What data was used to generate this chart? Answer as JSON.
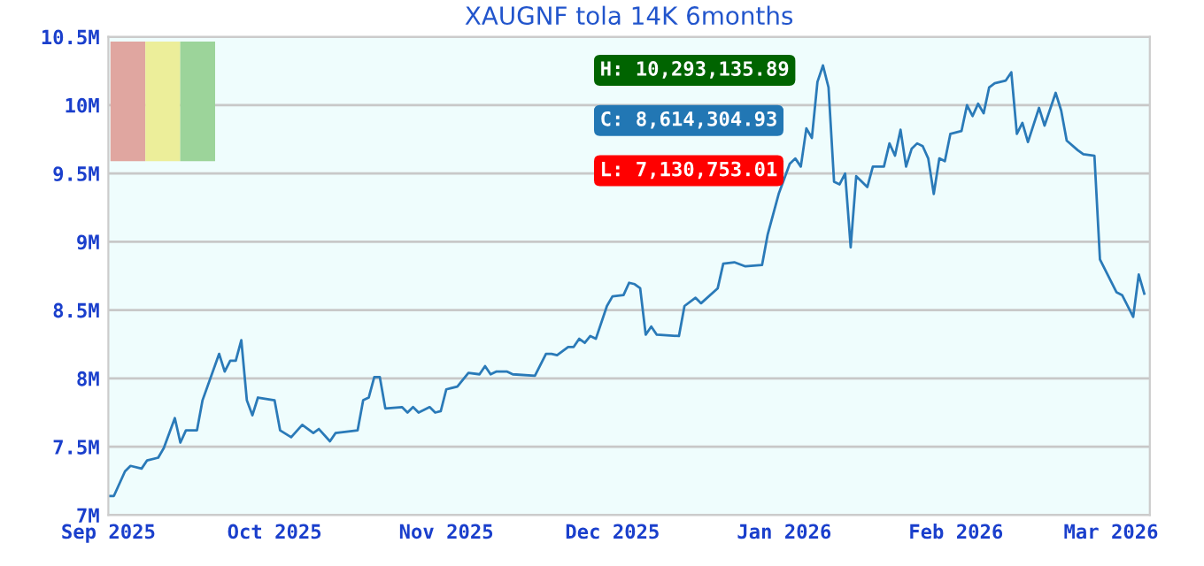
{
  "chart_data": {
    "type": "line",
    "title": "XAUGNF tola 14K 6months",
    "x": [
      "2025-09-01",
      "2025-09-02",
      "2025-09-04",
      "2025-09-05",
      "2025-09-07",
      "2025-09-08",
      "2025-09-10",
      "2025-09-11",
      "2025-09-13",
      "2025-09-14",
      "2025-09-15",
      "2025-09-17",
      "2025-09-18",
      "2025-09-21",
      "2025-09-22",
      "2025-09-23",
      "2025-09-24",
      "2025-09-25",
      "2025-09-26",
      "2025-09-27",
      "2025-09-28",
      "2025-10-01",
      "2025-10-02",
      "2025-10-04",
      "2025-10-06",
      "2025-10-08",
      "2025-10-09",
      "2025-10-11",
      "2025-10-12",
      "2025-10-16",
      "2025-10-17",
      "2025-10-18",
      "2025-10-19",
      "2025-10-20",
      "2025-10-21",
      "2025-10-24",
      "2025-10-25",
      "2025-10-26",
      "2025-10-27",
      "2025-10-29",
      "2025-10-30",
      "2025-10-31",
      "2025-11-01",
      "2025-11-03",
      "2025-11-05",
      "2025-11-07",
      "2025-11-08",
      "2025-11-09",
      "2025-11-10",
      "2025-11-12",
      "2025-11-13",
      "2025-11-17",
      "2025-11-19",
      "2025-11-20",
      "2025-11-21",
      "2025-11-23",
      "2025-11-24",
      "2025-11-25",
      "2025-11-26",
      "2025-11-27",
      "2025-11-28",
      "2025-11-30",
      "2025-12-01",
      "2025-12-03",
      "2025-12-04",
      "2025-12-05",
      "2025-12-06",
      "2025-12-07",
      "2025-12-08",
      "2025-12-09",
      "2025-12-13",
      "2025-12-14",
      "2025-12-16",
      "2025-12-17",
      "2025-12-20",
      "2025-12-21",
      "2025-12-23",
      "2025-12-25",
      "2025-12-28",
      "2025-12-29",
      "2025-12-31",
      "2026-01-02",
      "2026-01-03",
      "2026-01-04",
      "2026-01-05",
      "2026-01-06",
      "2026-01-07",
      "2026-01-08",
      "2026-01-09",
      "2026-01-10",
      "2026-01-11",
      "2026-01-12",
      "2026-01-13",
      "2026-01-14",
      "2026-01-16",
      "2026-01-17",
      "2026-01-19",
      "2026-01-20",
      "2026-01-21",
      "2026-01-22",
      "2026-01-23",
      "2026-01-24",
      "2026-01-25",
      "2026-01-26",
      "2026-01-27",
      "2026-01-28",
      "2026-01-29",
      "2026-01-30",
      "2026-01-31",
      "2026-02-02",
      "2026-02-03",
      "2026-02-04",
      "2026-02-05",
      "2026-02-06",
      "2026-02-07",
      "2026-02-08",
      "2026-02-10",
      "2026-02-11",
      "2026-02-12",
      "2026-02-13",
      "2026-02-14",
      "2026-02-16",
      "2026-02-17",
      "2026-02-19",
      "2026-02-20",
      "2026-02-21",
      "2026-02-23",
      "2026-02-24",
      "2026-02-26",
      "2026-02-27",
      "2026-03-02",
      "2026-03-03",
      "2026-03-05",
      "2026-03-06",
      "2026-03-07"
    ],
    "series": [
      {
        "color": "#2a7ab8",
        "values": [
          7.14,
          7.14,
          7.32,
          7.36,
          7.34,
          7.4,
          7.42,
          7.49,
          7.71,
          7.53,
          7.62,
          7.62,
          7.84,
          8.18,
          8.05,
          8.13,
          8.13,
          8.28,
          7.84,
          7.73,
          7.86,
          7.84,
          7.62,
          7.57,
          7.66,
          7.6,
          7.63,
          7.54,
          7.6,
          7.62,
          7.84,
          7.86,
          8.01,
          8.01,
          7.78,
          7.79,
          7.75,
          7.79,
          7.75,
          7.79,
          7.75,
          7.76,
          7.92,
          7.94,
          8.04,
          8.03,
          8.09,
          8.03,
          8.05,
          8.05,
          8.03,
          8.02,
          8.18,
          8.18,
          8.17,
          8.23,
          8.23,
          8.29,
          8.26,
          8.31,
          8.29,
          8.53,
          8.6,
          8.61,
          8.7,
          8.69,
          8.66,
          8.32,
          8.38,
          8.32,
          8.31,
          8.53,
          8.59,
          8.55,
          8.66,
          8.84,
          8.85,
          8.82,
          8.83,
          9.05,
          9.35,
          9.57,
          9.61,
          9.55,
          9.83,
          9.76,
          10.17,
          10.29,
          10.13,
          9.44,
          9.42,
          9.5,
          8.96,
          9.48,
          9.4,
          9.55,
          9.55,
          9.72,
          9.63,
          9.82,
          9.55,
          9.68,
          9.72,
          9.7,
          9.61,
          9.35,
          9.61,
          9.59,
          9.79,
          9.81,
          10.0,
          9.92,
          10.01,
          9.94,
          10.13,
          10.16,
          10.18,
          10.24,
          9.79,
          9.87,
          9.73,
          9.98,
          9.85,
          10.09,
          9.96,
          9.74,
          9.67,
          9.64,
          9.63,
          8.87,
          8.63,
          8.61,
          8.45,
          8.76,
          8.62
        ]
      }
    ],
    "xlim": [
      "2025-09-01",
      "2026-03-08"
    ],
    "xticks": [
      {
        "value": "2025-09-01",
        "label": "Sep 2025"
      },
      {
        "value": "2025-10-01",
        "label": "Oct 2025"
      },
      {
        "value": "2025-11-01",
        "label": "Nov 2025"
      },
      {
        "value": "2025-12-01",
        "label": "Dec 2025"
      },
      {
        "value": "2026-01-01",
        "label": "Jan 2026"
      },
      {
        "value": "2026-02-01",
        "label": "Feb 2026"
      },
      {
        "value": "2026-03-01",
        "label": "Mar 2026"
      }
    ],
    "ylim": [
      7,
      10.5
    ],
    "yticks": [
      {
        "value": 7,
        "label": "7M"
      },
      {
        "value": 7.5,
        "label": "7.5M"
      },
      {
        "value": 8,
        "label": "8M"
      },
      {
        "value": 8.5,
        "label": "8.5M"
      },
      {
        "value": 9,
        "label": "9M"
      },
      {
        "value": 9.5,
        "label": "9.5M"
      },
      {
        "value": 10,
        "label": "10M"
      },
      {
        "value": 10.5,
        "label": "10.5M"
      }
    ],
    "grid": "y",
    "annotations": [
      "H: 10,293,135.89",
      "C: 8,614,304.93",
      "L: 7,130,753.01"
    ]
  }
}
